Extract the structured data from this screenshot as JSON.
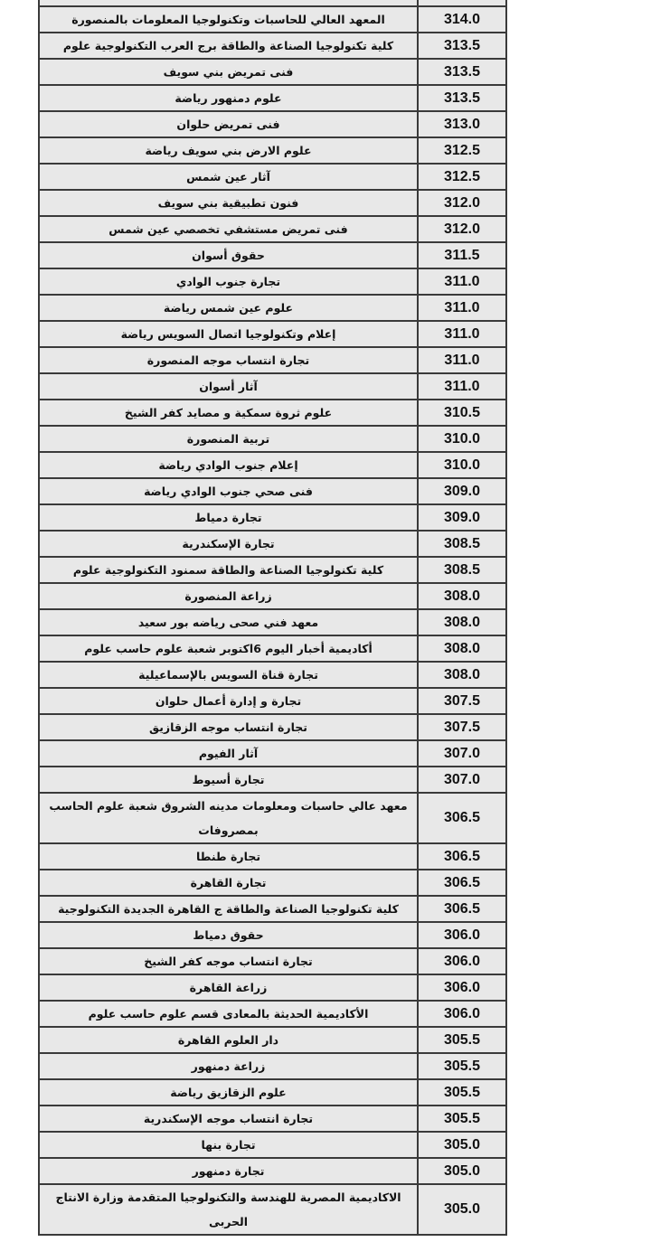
{
  "table": {
    "rows": [
      {
        "name": "",
        "score": ""
      },
      {
        "name": "المعهد العالي للحاسبات وتكنولوجيا المعلومات بالمنصورة",
        "score": "314.0"
      },
      {
        "name": "كلية تكنولوجيا الصناعة والطاقة برج العرب التكنولوجية علوم",
        "score": "313.5"
      },
      {
        "name": "فنى تمريض بني سويف",
        "score": "313.5"
      },
      {
        "name": "علوم دمنهور رياضة",
        "score": "313.5"
      },
      {
        "name": "فنى تمريض حلوان",
        "score": "313.0"
      },
      {
        "name": "علوم الارض بني سويف رياضة",
        "score": "312.5"
      },
      {
        "name": "آثار عين شمس",
        "score": "312.5"
      },
      {
        "name": "فنون تطبيقية بني سويف",
        "score": "312.0"
      },
      {
        "name": "فنى تمريض مستشفي تخصصي عين شمس",
        "score": "312.0"
      },
      {
        "name": "حقوق أسوان",
        "score": "311.5"
      },
      {
        "name": "تجارة جنوب الوادي",
        "score": "311.0"
      },
      {
        "name": "علوم عين شمس رياضة",
        "score": "311.0"
      },
      {
        "name": "إعلام وتكنولوجيا اتصال السويس رياضة",
        "score": "311.0"
      },
      {
        "name": "تجارة انتساب موجه المنصورة",
        "score": "311.0"
      },
      {
        "name": "آثار أسوان",
        "score": "311.0"
      },
      {
        "name": "علوم ثروة سمكية و مصايد كفر الشيخ",
        "score": "310.5"
      },
      {
        "name": "تربية المنصورة",
        "score": "310.0"
      },
      {
        "name": "إعلام جنوب الوادي رياضة",
        "score": "310.0"
      },
      {
        "name": "فنى صحي جنوب الوادي رياضة",
        "score": "309.0"
      },
      {
        "name": "تجارة دمياط",
        "score": "309.0"
      },
      {
        "name": "تجارة الإسكندرية",
        "score": "308.5"
      },
      {
        "name": "كلية تكنولوجيا الصناعة والطاقة سمنود التكنولوجية علوم",
        "score": "308.5"
      },
      {
        "name": "زراعة المنصورة",
        "score": "308.0"
      },
      {
        "name": "معهد فني صحى رياضه بور سعيد",
        "score": "308.0"
      },
      {
        "name": "أكاديمية أخبار اليوم 6اكتوبر شعبة علوم حاسب علوم",
        "score": "308.0"
      },
      {
        "name": "تجارة قناة السويس بالإسماعيلية",
        "score": "308.0"
      },
      {
        "name": "تجارة و إدارة أعمال حلوان",
        "score": "307.5"
      },
      {
        "name": "تجارة انتساب موجه الزقازيق",
        "score": "307.5"
      },
      {
        "name": "آثار الفيوم",
        "score": "307.0"
      },
      {
        "name": "تجارة أسيوط",
        "score": "307.0"
      },
      {
        "name": "معهد عالي حاسبات ومعلومات مدينه الشروق شعبة علوم الحاسب بمصروفات",
        "score": "306.5"
      },
      {
        "name": "تجارة طنطا",
        "score": "306.5"
      },
      {
        "name": "تجارة القاهرة",
        "score": "306.5"
      },
      {
        "name": "كلية تكنولوجيا الصناعة والطاقة ج القاهرة الجديدة التكنولوجية",
        "score": "306.5"
      },
      {
        "name": "حقوق دمياط",
        "score": "306.0"
      },
      {
        "name": "تجارة انتساب موجه كفر الشيخ",
        "score": "306.0"
      },
      {
        "name": "زراعة القاهرة",
        "score": "306.0"
      },
      {
        "name": "الأكاديمية الحديثة بالمعادى قسم علوم حاسب علوم",
        "score": "306.0"
      },
      {
        "name": "دار العلوم القاهرة",
        "score": "305.5"
      },
      {
        "name": "زراعة دمنهور",
        "score": "305.5"
      },
      {
        "name": "علوم الزقازيق رياضة",
        "score": "305.5"
      },
      {
        "name": "تجارة انتساب موجه الإسكندرية",
        "score": "305.5"
      },
      {
        "name": "تجارة بنها",
        "score": "305.0"
      },
      {
        "name": "تجارة دمنهور",
        "score": "305.0"
      },
      {
        "name": "الاكاديمية المصرية للهندسة والتكنولوجيا المتقدمة وزارة الانتاج الحربى",
        "score": "305.0"
      }
    ]
  }
}
